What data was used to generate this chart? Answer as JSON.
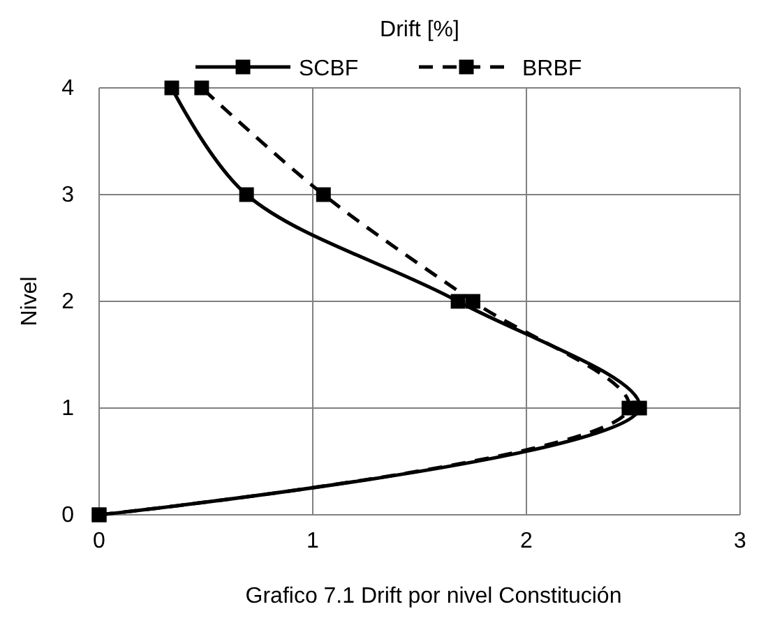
{
  "chart_data": {
    "type": "line",
    "xlabel": "Drift [%]",
    "ylabel": "Nivel",
    "annotations": [
      "Grafico 7.1 Drift por nivel Constitución"
    ],
    "xlim": [
      0,
      3
    ],
    "xticks": [
      0,
      1,
      2,
      3
    ],
    "ylim": [
      0,
      4
    ],
    "yticks": [
      0,
      1,
      2,
      3,
      4
    ],
    "grid": true,
    "legend": "top",
    "marker": "square",
    "series": [
      {
        "name": "SCBF",
        "color": "#000000",
        "line_style": "solid",
        "x": [
          0,
          2.53,
          1.68,
          0.69,
          0.34
        ],
        "values": [
          0,
          1,
          2,
          3,
          4
        ]
      },
      {
        "name": "BRBF",
        "color": "#000000",
        "line_style": "dashed",
        "x": [
          0,
          2.48,
          1.75,
          1.05,
          0.48
        ],
        "values": [
          0,
          1,
          2,
          3,
          4
        ]
      }
    ]
  }
}
